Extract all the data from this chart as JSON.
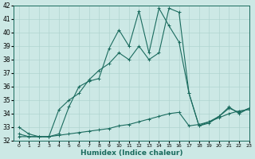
{
  "xlabel": "Humidex (Indice chaleur)",
  "ylim": [
    32,
    42
  ],
  "xlim": [
    -0.5,
    23
  ],
  "yticks": [
    32,
    33,
    34,
    35,
    36,
    37,
    38,
    39,
    40,
    41,
    42
  ],
  "xticks": [
    0,
    1,
    2,
    3,
    4,
    5,
    6,
    7,
    8,
    9,
    10,
    11,
    12,
    13,
    14,
    15,
    16,
    17,
    18,
    19,
    20,
    21,
    22,
    23
  ],
  "bg_color": "#cce8e5",
  "grid_color": "#b0d4d0",
  "line_color": "#1a6b5e",
  "line1_y": [
    32.3,
    32.3,
    32.3,
    32.3,
    32.4,
    32.5,
    32.6,
    32.7,
    32.8,
    32.9,
    33.1,
    33.2,
    33.4,
    33.6,
    33.8,
    34.0,
    34.1,
    33.1,
    33.2,
    33.4,
    33.7,
    34.0,
    34.2,
    34.3
  ],
  "line2_y": [
    32.5,
    32.3,
    32.3,
    32.3,
    34.3,
    35.0,
    35.5,
    36.5,
    37.2,
    37.7,
    38.5,
    38.0,
    39.0,
    38.0,
    38.5,
    41.8,
    41.5,
    35.5,
    33.1,
    33.4,
    33.8,
    34.4,
    34.1,
    34.4
  ],
  "line3_y": [
    33.0,
    32.5,
    32.3,
    32.3,
    32.5,
    34.5,
    36.0,
    36.4,
    36.6,
    38.8,
    40.2,
    39.0,
    41.6,
    38.5,
    41.8,
    40.5,
    39.3,
    35.5,
    33.1,
    33.3,
    33.8,
    34.5,
    34.0,
    34.4
  ]
}
